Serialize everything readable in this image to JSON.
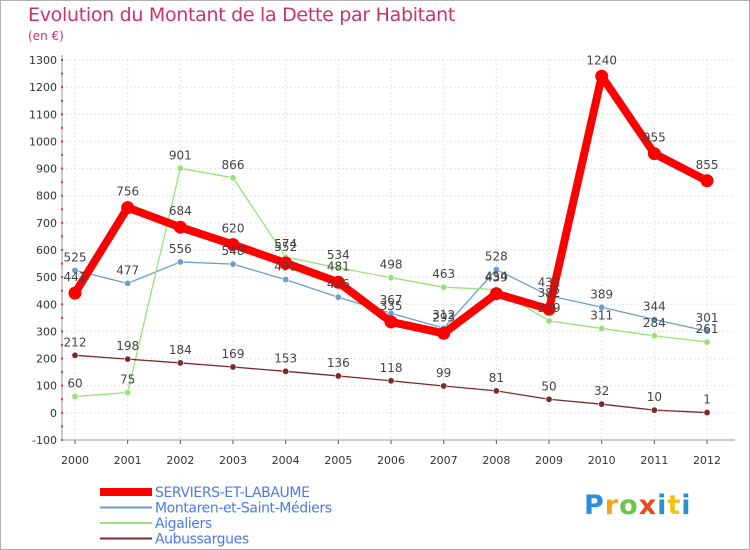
{
  "title": "Evolution du Montant de la Dette par Habitant",
  "subtitle": "(en €)",
  "logo_text": "Proxiti",
  "chart_data": {
    "type": "line",
    "x": [
      "2000",
      "2001",
      "2002",
      "2003",
      "2004",
      "2005",
      "2006",
      "2007",
      "2008",
      "2009",
      "2010",
      "2011",
      "2012"
    ],
    "ylim": [
      -100,
      1300
    ],
    "yticks": [
      -100,
      0,
      100,
      200,
      300,
      400,
      500,
      600,
      700,
      800,
      900,
      1000,
      1100,
      1200,
      1300
    ],
    "grid": true,
    "legend_position": "bottom-left",
    "series": [
      {
        "name": "SERVIERS-ET-LABAUME",
        "color": "#ff0000",
        "emphasis": true,
        "values": [
          441,
          756,
          684,
          620,
          552,
          481,
          335,
          293,
          439,
          382,
          1240,
          955,
          855
        ],
        "labels": [
          "441",
          "756",
          "684",
          "620",
          "552",
          "481",
          "335",
          "293",
          "439",
          "382",
          "1240",
          "955",
          "855"
        ]
      },
      {
        "name": "Montaren-et-Saint-Médiers",
        "color": "#6a9ecf",
        "values": [
          525,
          477,
          556,
          548,
          491,
          426,
          367,
          312,
          528,
          432,
          389,
          344,
          301
        ],
        "labels": [
          "525",
          "477",
          "556",
          "548",
          "491",
          "426",
          "367",
          "312",
          "528",
          "432",
          "389",
          "344",
          "301"
        ]
      },
      {
        "name": "Aigaliers",
        "color": "#99e07a",
        "values": [
          60,
          75,
          901,
          866,
          574,
          534,
          498,
          463,
          454,
          339,
          311,
          284,
          261
        ],
        "labels": [
          "60",
          "75",
          "901",
          "866",
          "574",
          "534",
          "498",
          "463",
          "454",
          "339",
          "311",
          "284",
          "261"
        ]
      },
      {
        "name": "Aubussargues",
        "color": "#7a2b2b",
        "values": [
          212,
          198,
          184,
          169,
          153,
          136,
          118,
          99,
          81,
          50,
          32,
          10,
          1
        ],
        "labels": [
          "212",
          "198",
          "184",
          "169",
          "153",
          "136",
          "118",
          "99",
          "81",
          "50",
          "32",
          "10",
          "1"
        ]
      }
    ]
  }
}
